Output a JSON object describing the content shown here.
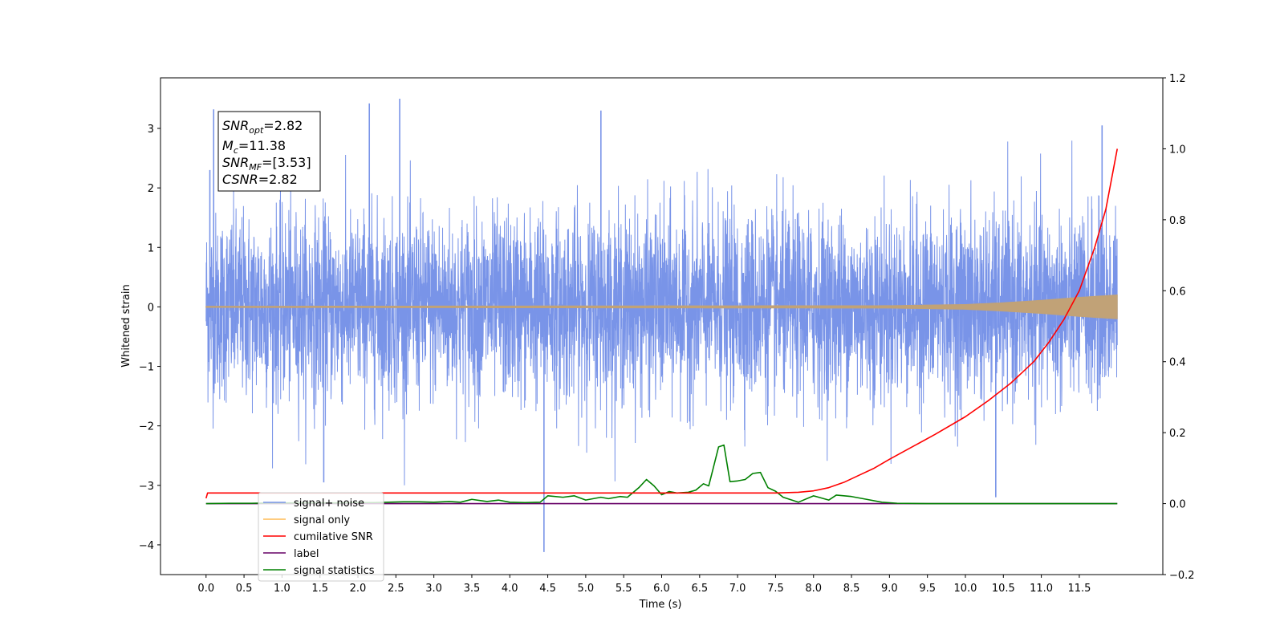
{
  "chart_data": {
    "type": "line",
    "xlabel": "Time (s)",
    "ylabel": "Whitened strain",
    "xlim": [
      -0.6,
      12.6
    ],
    "ylim": [
      -4.5,
      3.85
    ],
    "ylim_right": [
      -0.2,
      1.2
    ],
    "x_ticks": [
      "0.0",
      "0.5",
      "1.0",
      "1.5",
      "2.0",
      "2.5",
      "3.0",
      "3.5",
      "4.0",
      "4.5",
      "5.0",
      "5.5",
      "6.0",
      "6.5",
      "7.0",
      "7.5",
      "8.0",
      "8.5",
      "9.0",
      "9.5",
      "10.0",
      "10.5",
      "11.0",
      "11.5"
    ],
    "y_ticks": [
      "3",
      "2",
      "1",
      "0",
      "−1",
      "−2",
      "−3",
      "−4"
    ],
    "y_ticks_right": [
      "1.2",
      "1.0",
      "0.8",
      "0.6",
      "0.4",
      "0.2",
      "0.0",
      "−0.2"
    ],
    "grid": false,
    "legend_position": "lower-left",
    "series": [
      {
        "name": "signal+ noise",
        "color": "#7994e8",
        "axis": "left",
        "description": "whitened strain, approx. zero-mean noise with std ~0.75 over t=0..12 s",
        "spikes": [
          {
            "x": 0.1,
            "y": 3.32
          },
          {
            "x": 2.15,
            "y": 3.42
          },
          {
            "x": 2.55,
            "y": 3.5
          },
          {
            "x": 5.2,
            "y": 3.3
          },
          {
            "x": 1.55,
            "y": -2.95
          },
          {
            "x": 4.45,
            "y": -4.12
          },
          {
            "x": 10.4,
            "y": -3.2
          },
          {
            "x": 0.05,
            "y": 2.3
          },
          {
            "x": 11.8,
            "y": 3.05
          }
        ]
      },
      {
        "name": "signal only",
        "color": "#ffbb55",
        "axis": "left",
        "envelope": {
          "x": [
            0,
            9,
            10,
            10.5,
            11,
            11.5,
            12
          ],
          "amp": [
            0.01,
            0.02,
            0.04,
            0.07,
            0.11,
            0.16,
            0.2
          ]
        }
      },
      {
        "name": "cumilative SNR",
        "color": "#ff0000",
        "axis": "right",
        "x": [
          0.0,
          0.02,
          1.0,
          4.0,
          7.0,
          7.5,
          7.8,
          8.0,
          8.2,
          8.4,
          8.6,
          8.8,
          9.0,
          9.3,
          9.6,
          10.0,
          10.3,
          10.6,
          10.9,
          11.1,
          11.3,
          11.5,
          11.7,
          11.85,
          12.0
        ],
        "values": [
          0.015,
          0.03,
          0.03,
          0.03,
          0.03,
          0.03,
          0.032,
          0.036,
          0.045,
          0.06,
          0.08,
          0.1,
          0.125,
          0.16,
          0.195,
          0.245,
          0.29,
          0.34,
          0.4,
          0.455,
          0.52,
          0.6,
          0.72,
          0.83,
          1.0
        ]
      },
      {
        "name": "label",
        "color": "#660066",
        "axis": "right",
        "x": [
          0.0,
          12.0
        ],
        "values": [
          0.0,
          0.0
        ]
      },
      {
        "name": "signal statistics",
        "color": "#008000",
        "axis": "right",
        "x": [
          0.0,
          0.3,
          0.6,
          0.9,
          1.2,
          1.5,
          1.8,
          2.0,
          2.2,
          2.4,
          2.6,
          2.8,
          3.0,
          3.2,
          3.35,
          3.5,
          3.7,
          3.85,
          4.0,
          4.2,
          4.4,
          4.5,
          4.7,
          4.85,
          5.0,
          5.2,
          5.3,
          5.45,
          5.55,
          5.7,
          5.8,
          5.9,
          6.0,
          6.1,
          6.2,
          6.35,
          6.45,
          6.55,
          6.62,
          6.75,
          6.82,
          6.9,
          7.0,
          7.1,
          7.2,
          7.3,
          7.4,
          7.5,
          7.6,
          7.8,
          8.0,
          8.2,
          8.3,
          8.4,
          8.5,
          8.55,
          8.7,
          8.9,
          9.1,
          9.5,
          10.0,
          11.0,
          12.0
        ],
        "values": [
          0.0,
          0.001,
          0.001,
          0.002,
          0.002,
          0.002,
          0.002,
          0.003,
          0.003,
          0.004,
          0.005,
          0.005,
          0.004,
          0.006,
          0.004,
          0.012,
          0.006,
          0.01,
          0.004,
          0.003,
          0.004,
          0.022,
          0.018,
          0.022,
          0.01,
          0.018,
          0.014,
          0.02,
          0.018,
          0.045,
          0.068,
          0.05,
          0.025,
          0.034,
          0.03,
          0.032,
          0.038,
          0.056,
          0.05,
          0.16,
          0.165,
          0.062,
          0.064,
          0.068,
          0.085,
          0.088,
          0.045,
          0.035,
          0.018,
          0.004,
          0.022,
          0.01,
          0.024,
          0.022,
          0.02,
          0.018,
          0.012,
          0.004,
          0.001,
          0.0,
          0.0,
          0.0,
          0.0
        ]
      }
    ],
    "legend": [
      "signal+ noise",
      "signal only",
      "cumilative SNR",
      "label",
      "signal statistics"
    ],
    "annotation_lines": [
      {
        "base": "SNR",
        "sub": "opt",
        "value": "=2.82"
      },
      {
        "base": "M",
        "sub": "c",
        "value": "=11.38"
      },
      {
        "base": "SNR",
        "sub": "MF",
        "value": "=[3.53]"
      },
      {
        "base": "CSNR",
        "sub": "",
        "value": "=2.82"
      }
    ]
  }
}
